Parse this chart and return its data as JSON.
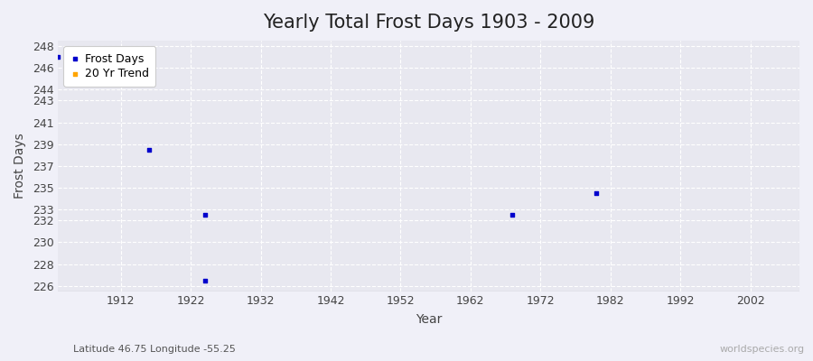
{
  "title": "Yearly Total Frost Days 1903 - 2009",
  "xlabel": "Year",
  "ylabel": "Frost Days",
  "xlim": [
    1903,
    2009
  ],
  "ylim": [
    225.5,
    248.5
  ],
  "yticks": [
    226,
    228,
    230,
    232,
    233,
    235,
    237,
    239,
    241,
    243,
    244,
    246,
    248
  ],
  "xticks": [
    1912,
    1922,
    1932,
    1942,
    1952,
    1962,
    1972,
    1982,
    1992,
    2002
  ],
  "scatter_x": [
    1903,
    1916,
    1924,
    1924,
    1968,
    1980
  ],
  "scatter_y": [
    247,
    238.5,
    232.5,
    226.5,
    232.5,
    234.5
  ],
  "scatter_color": "#0000cc",
  "scatter_marker": "s",
  "scatter_size": 8,
  "legend_labels": [
    "Frost Days",
    "20 Yr Trend"
  ],
  "legend_colors": [
    "#0000cc",
    "#ffa500"
  ],
  "bg_color": "#f0f0f8",
  "plot_bg_color": "#e8e8f0",
  "grid_color": "#ffffff",
  "subtitle": "Latitude 46.75 Longitude -55.25",
  "watermark": "worldspecies.org",
  "title_fontsize": 15,
  "axis_label_fontsize": 10,
  "tick_fontsize": 9
}
